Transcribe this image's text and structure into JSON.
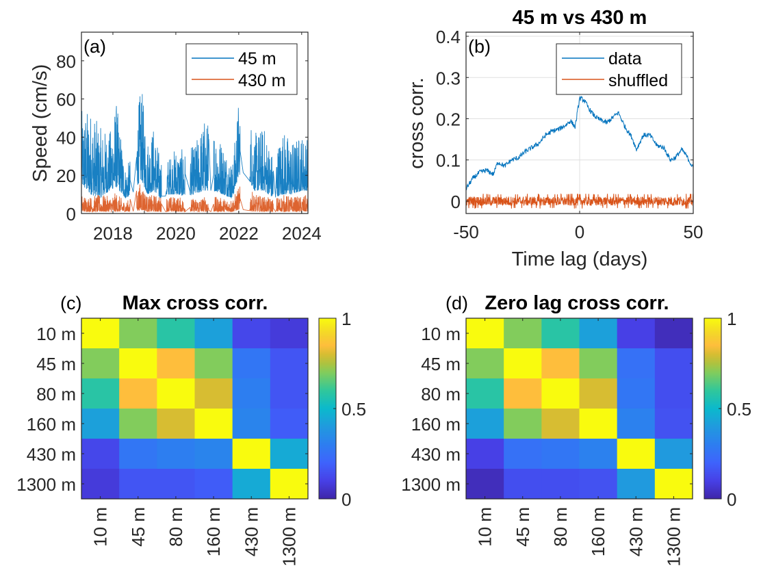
{
  "colors": {
    "blue": "#0072BD",
    "orange": "#D95319",
    "axis": "#262626",
    "grid": "#DFDFDF"
  },
  "chart_data": [
    {
      "type": "line",
      "panel": "(a)",
      "title": "",
      "xlabel": "",
      "ylabel": "Speed (cm/s)",
      "xlim": [
        2017.0,
        2024.2
      ],
      "ylim": [
        0,
        95
      ],
      "xticks": [
        2018,
        2020,
        2022,
        2024
      ],
      "xtick_labels": [
        "2018",
        "2020",
        "2022",
        "2024"
      ],
      "yticks": [
        0,
        20,
        40,
        60,
        80
      ],
      "ytick_labels": [
        "0",
        "20",
        "40",
        "60",
        "80"
      ],
      "grid": false,
      "legend": {
        "position": "top-right",
        "entries": [
          "45 m",
          "430 m"
        ]
      },
      "series": [
        {
          "name": "45 m",
          "color": "#0072BD",
          "description": "noisy daily speed, envelope peaks",
          "x": [
            2017.0,
            2017.3,
            2017.6,
            2017.9,
            2018.1,
            2018.4,
            2018.6,
            2018.9,
            2019.1,
            2019.3,
            2019.5,
            2019.8,
            2020.0,
            2020.3,
            2020.6,
            2020.9,
            2021.2,
            2021.5,
            2021.8,
            2022.0,
            2022.2,
            2022.5,
            2022.8,
            2023.1,
            2023.4,
            2023.7,
            2024.0,
            2024.2
          ],
          "peak": [
            54,
            55,
            45,
            43,
            60,
            24,
            30,
            68,
            40,
            46,
            30,
            30,
            35,
            33,
            36,
            50,
            46,
            38,
            26,
            61,
            63,
            42,
            46,
            30,
            45,
            38,
            42,
            40
          ],
          "baseline": [
            15,
            10,
            8,
            12,
            14,
            8,
            10,
            18,
            10,
            12,
            8,
            10,
            10,
            9,
            10,
            12,
            12,
            10,
            8,
            20,
            22,
            12,
            12,
            8,
            10,
            10,
            12,
            12
          ]
        },
        {
          "name": "430 m",
          "color": "#D95319",
          "description": "noisy daily speed, mostly 0-10 cm/s",
          "x": [
            2017.0,
            2017.3,
            2017.6,
            2017.9,
            2018.1,
            2018.4,
            2018.6,
            2018.9,
            2019.1,
            2019.3,
            2019.5,
            2019.8,
            2020.0,
            2020.3,
            2020.6,
            2020.9,
            2021.2,
            2021.5,
            2021.8,
            2022.0,
            2022.2,
            2022.5,
            2022.8,
            2023.1,
            2023.4,
            2023.7,
            2024.0,
            2024.2
          ],
          "peak": [
            10,
            9,
            10,
            9,
            11,
            6,
            9,
            17,
            9,
            10,
            9,
            9,
            9,
            8,
            8,
            9,
            9,
            8,
            8,
            14,
            16,
            10,
            9,
            8,
            10,
            9,
            9,
            10
          ],
          "baseline": [
            1,
            1,
            1,
            1,
            1,
            1,
            1,
            2,
            1,
            1,
            1,
            1,
            1,
            1,
            1,
            1,
            1,
            1,
            1,
            2,
            2,
            1,
            1,
            1,
            1,
            1,
            1,
            1
          ]
        }
      ]
    },
    {
      "type": "line",
      "panel": "(b)",
      "title": "45 m vs 430 m",
      "xlabel": "Time lag (days)",
      "ylabel": "cross corr.",
      "xlim": [
        -50,
        50
      ],
      "ylim": [
        -0.03,
        0.41
      ],
      "xticks": [
        -50,
        0,
        50
      ],
      "xtick_labels": [
        "-50",
        "0",
        "50"
      ],
      "yticks": [
        0,
        0.1,
        0.2,
        0.3,
        0.4
      ],
      "ytick_labels": [
        "0",
        "0.1",
        "0.2",
        "0.3",
        "0.4"
      ],
      "grid": true,
      "legend": {
        "position": "top-right",
        "entries": [
          "data",
          "shuffled"
        ]
      },
      "series": [
        {
          "name": "data",
          "color": "#0072BD",
          "x": [
            -50,
            -47,
            -44,
            -41,
            -38,
            -36,
            -33,
            -30,
            -27,
            -24,
            -21,
            -18,
            -15,
            -12,
            -9,
            -6,
            -4,
            -2,
            0,
            2,
            4,
            6,
            8,
            10,
            12,
            15,
            17,
            20,
            23,
            25,
            28,
            31,
            34,
            37,
            40,
            42,
            45,
            47,
            50
          ],
          "y": [
            0.03,
            0.055,
            0.07,
            0.075,
            0.065,
            0.095,
            0.085,
            0.1,
            0.105,
            0.12,
            0.13,
            0.14,
            0.16,
            0.17,
            0.175,
            0.185,
            0.195,
            0.18,
            0.25,
            0.245,
            0.225,
            0.21,
            0.2,
            0.195,
            0.19,
            0.205,
            0.215,
            0.18,
            0.155,
            0.125,
            0.16,
            0.16,
            0.135,
            0.13,
            0.1,
            0.105,
            0.125,
            0.11,
            0.08
          ]
        },
        {
          "name": "shuffled",
          "color": "#D95319",
          "x": [
            -50,
            50
          ],
          "mean": 0.0,
          "noise_amplitude": 0.012
        }
      ]
    },
    {
      "type": "heatmap",
      "panel": "(c)",
      "title": "Max cross corr.",
      "row_labels": [
        "10 m",
        "45 m",
        "80 m",
        "160 m",
        "430 m",
        "1300 m"
      ],
      "col_labels": [
        "10 m",
        "45 m",
        "80 m",
        "160 m",
        "430 m",
        "1300 m"
      ],
      "colorbar": {
        "min": 0,
        "max": 1,
        "ticks": [
          0,
          0.5,
          1
        ],
        "tick_labels": [
          "0",
          "0.5",
          "1"
        ],
        "colormap": "parula"
      },
      "values": [
        [
          1.0,
          0.7,
          0.58,
          0.42,
          0.12,
          0.08
        ],
        [
          0.7,
          1.0,
          0.85,
          0.7,
          0.27,
          0.16
        ],
        [
          0.58,
          0.85,
          1.0,
          0.8,
          0.3,
          0.16
        ],
        [
          0.42,
          0.7,
          0.8,
          1.0,
          0.32,
          0.18
        ],
        [
          0.12,
          0.27,
          0.3,
          0.32,
          1.0,
          0.45
        ],
        [
          0.08,
          0.16,
          0.16,
          0.18,
          0.45,
          1.0
        ]
      ]
    },
    {
      "type": "heatmap",
      "panel": "(d)",
      "title": "Zero lag cross corr.",
      "row_labels": [
        "10 m",
        "45 m",
        "80 m",
        "160 m",
        "430 m",
        "1300 m"
      ],
      "col_labels": [
        "10 m",
        "45 m",
        "80 m",
        "160 m",
        "430 m",
        "1300 m"
      ],
      "colorbar": {
        "min": 0,
        "max": 1,
        "ticks": [
          0,
          0.5,
          1
        ],
        "tick_labels": [
          "0",
          "0.5",
          "1"
        ],
        "colormap": "parula"
      },
      "values": [
        [
          1.0,
          0.7,
          0.58,
          0.42,
          0.1,
          0.03
        ],
        [
          0.7,
          1.0,
          0.85,
          0.7,
          0.25,
          0.14
        ],
        [
          0.58,
          0.85,
          1.0,
          0.8,
          0.27,
          0.14
        ],
        [
          0.42,
          0.7,
          0.8,
          1.0,
          0.31,
          0.15
        ],
        [
          0.1,
          0.25,
          0.27,
          0.31,
          1.0,
          0.4
        ],
        [
          0.03,
          0.14,
          0.14,
          0.15,
          0.4,
          1.0
        ]
      ]
    }
  ]
}
